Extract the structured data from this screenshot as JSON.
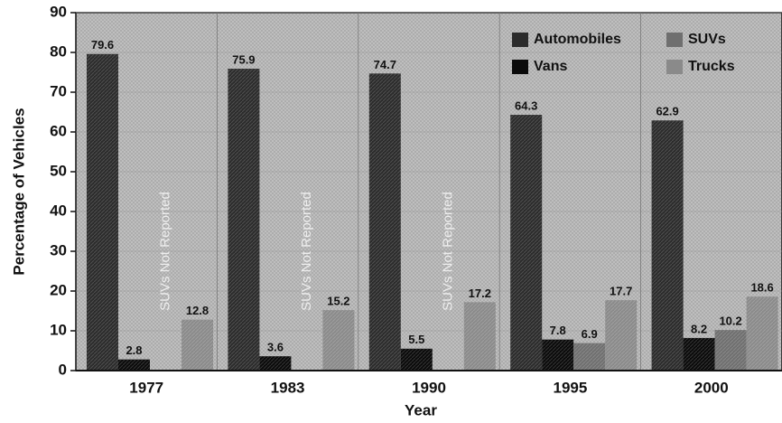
{
  "chart_data": {
    "type": "bar",
    "categories": [
      "1977",
      "1983",
      "1990",
      "1995",
      "2000"
    ],
    "series": [
      {
        "name": "Automobiles",
        "color": "#2b2b2b",
        "values": [
          79.6,
          75.9,
          74.7,
          64.3,
          62.9
        ]
      },
      {
        "name": "Vans",
        "color": "#0a0a0a",
        "values": [
          2.8,
          3.6,
          5.5,
          7.8,
          8.2
        ]
      },
      {
        "name": "SUVs",
        "color": "#6f6f6f",
        "values": [
          null,
          null,
          null,
          6.9,
          10.2
        ]
      },
      {
        "name": "Trucks",
        "color": "#8a8a8a",
        "values": [
          12.8,
          15.2,
          17.2,
          17.7,
          18.6
        ]
      }
    ],
    "annotations": [
      "SUVs Not Reported",
      "SUVs Not Reported",
      "SUVs Not Reported"
    ],
    "xlabel": "Year",
    "ylabel": "Percentage of Vehicles",
    "ylim": [
      0,
      90
    ],
    "yticks": [
      0,
      10,
      20,
      30,
      40,
      50,
      60,
      70,
      80,
      90
    ],
    "grid": true,
    "legend": "upper right"
  }
}
